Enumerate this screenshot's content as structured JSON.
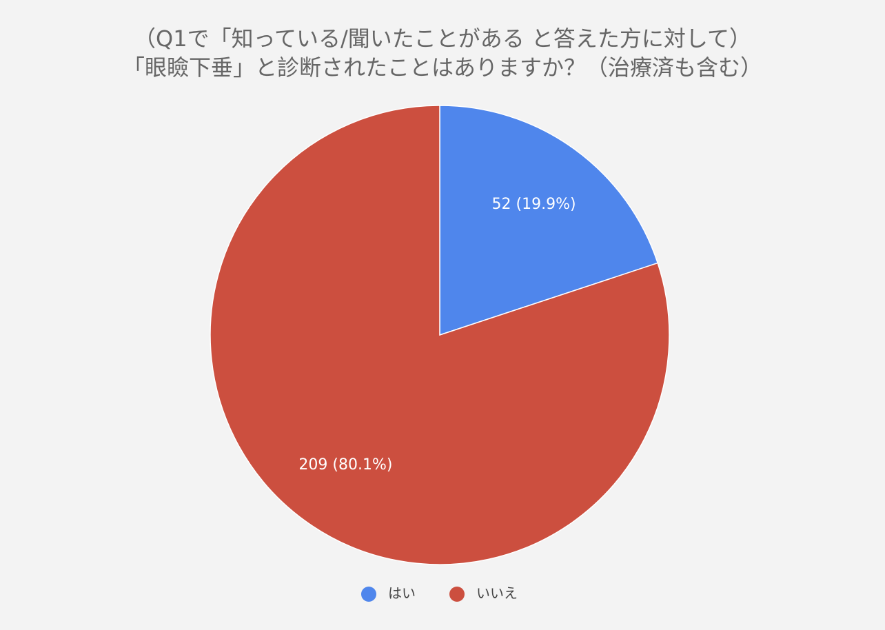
{
  "chart_data": {
    "type": "pie",
    "title": [
      "（Q1で「知っている/聞いたことがある と答えた方に対して）",
      "「眼瞼下垂」と診断されたことはありますか？（治療済も含む）"
    ],
    "categories": [
      "はい",
      "いいえ"
    ],
    "values": [
      52,
      209
    ],
    "value_labels": [
      "52 (19.9%)",
      "209 (80.1%)"
    ],
    "colors": [
      "#4f86ec",
      "#cc4f3f"
    ],
    "legend": "bottom"
  }
}
